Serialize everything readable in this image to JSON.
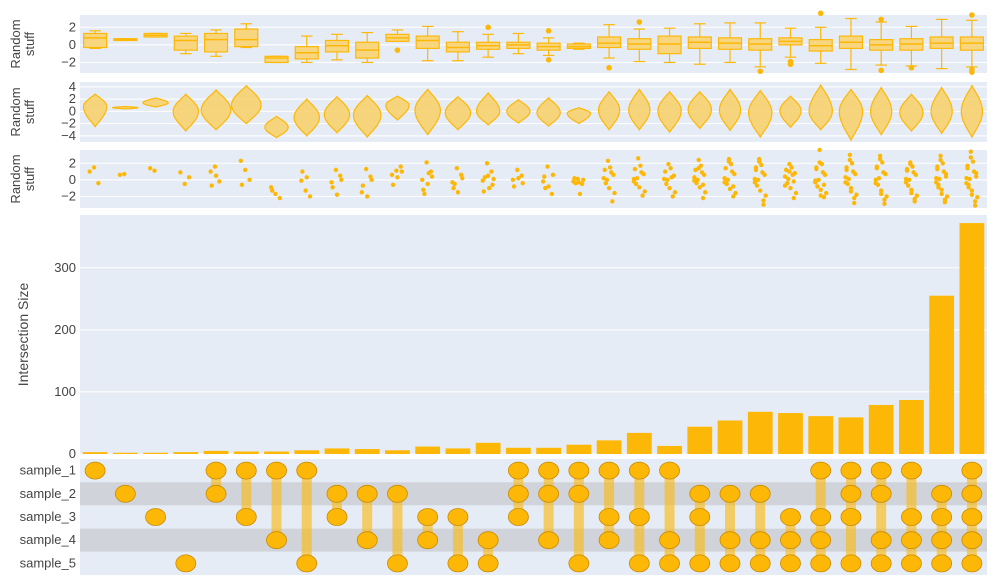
{
  "colors": {
    "bar": "#FDB807",
    "bar_stroke": "#E5A200",
    "violin_fill": "#F7D26F",
    "box_fill": "#F8D680",
    "panel_bg": "#E6ECF5",
    "band_light": "#E6ECF5",
    "band_dark": "#D0D4DA",
    "gridline": "#FFFFFF",
    "dot_stroke": "#C98A00",
    "text": "#444444"
  },
  "chart_data": [
    {
      "type": "box",
      "ylabel_lines": [
        "Random",
        "stuff"
      ],
      "ylim": [
        -3.2,
        3.4
      ],
      "yticks": [
        -2,
        0,
        2
      ],
      "ytick_labels": [
        "−2",
        "0",
        "2"
      ],
      "boxes": [
        {
          "q1": -0.3,
          "median": 0.8,
          "q3": 1.3,
          "lo": -0.4,
          "hi": 1.6,
          "out": []
        },
        {
          "q1": 0.5,
          "median": 0.6,
          "q3": 0.7,
          "lo": 0.5,
          "hi": 0.7,
          "out": []
        },
        {
          "q1": 0.9,
          "median": 1.1,
          "q3": 1.3,
          "lo": 0.9,
          "hi": 1.3,
          "out": []
        },
        {
          "q1": -0.6,
          "median": 0.5,
          "q3": 1.0,
          "lo": -1.0,
          "hi": 1.3,
          "out": []
        },
        {
          "q1": -0.8,
          "median": 0.6,
          "q3": 1.3,
          "lo": -1.3,
          "hi": 1.7,
          "out": []
        },
        {
          "q1": -0.2,
          "median": 0.6,
          "q3": 1.8,
          "lo": -0.3,
          "hi": 2.4,
          "out": []
        },
        {
          "q1": -2.0,
          "median": -1.5,
          "q3": -1.3,
          "lo": -2.0,
          "hi": -1.3,
          "out": []
        },
        {
          "q1": -1.6,
          "median": -0.9,
          "q3": -0.2,
          "lo": -2.0,
          "hi": 1.0,
          "out": []
        },
        {
          "q1": -0.8,
          "median": -0.1,
          "q3": 0.5,
          "lo": -1.7,
          "hi": 1.2,
          "out": []
        },
        {
          "q1": -1.5,
          "median": -0.6,
          "q3": 0.3,
          "lo": -2.0,
          "hi": 1.4,
          "out": []
        },
        {
          "q1": 0.4,
          "median": 0.8,
          "q3": 1.2,
          "lo": 0.4,
          "hi": 1.7,
          "out": [
            -0.6
          ]
        },
        {
          "q1": -0.4,
          "median": 0.5,
          "q3": 1.0,
          "lo": -1.8,
          "hi": 2.1,
          "out": []
        },
        {
          "q1": -0.8,
          "median": -0.3,
          "q3": 0.3,
          "lo": -1.8,
          "hi": 1.5,
          "out": []
        },
        {
          "q1": -0.5,
          "median": -0.1,
          "q3": 0.3,
          "lo": -1.4,
          "hi": 1.2,
          "out": [
            2.0
          ]
        },
        {
          "q1": -0.4,
          "median": 0.0,
          "q3": 0.3,
          "lo": -1.0,
          "hi": 1.3,
          "out": []
        },
        {
          "q1": -0.6,
          "median": -0.2,
          "q3": 0.2,
          "lo": -1.2,
          "hi": 0.8,
          "out": [
            1.6,
            -1.7
          ]
        },
        {
          "q1": -0.4,
          "median": -0.2,
          "q3": 0.1,
          "lo": -0.5,
          "hi": 0.2,
          "out": []
        },
        {
          "q1": -0.3,
          "median": 0.2,
          "q3": 0.9,
          "lo": -1.5,
          "hi": 2.3,
          "out": [
            -2.6
          ]
        },
        {
          "q1": -0.5,
          "median": 0.1,
          "q3": 0.7,
          "lo": -1.9,
          "hi": 1.8,
          "out": [
            2.6
          ]
        },
        {
          "q1": -1.0,
          "median": 0.1,
          "q3": 1.0,
          "lo": -2.0,
          "hi": 1.9,
          "out": []
        },
        {
          "q1": -0.4,
          "median": 0.3,
          "q3": 0.9,
          "lo": -2.2,
          "hi": 2.4,
          "out": []
        },
        {
          "q1": -0.5,
          "median": 0.2,
          "q3": 0.8,
          "lo": -2.0,
          "hi": 2.5,
          "out": []
        },
        {
          "q1": -0.6,
          "median": 0.1,
          "q3": 0.7,
          "lo": -2.5,
          "hi": 2.5,
          "out": [
            -3.0
          ]
        },
        {
          "q1": 0.0,
          "median": 0.4,
          "q3": 0.8,
          "lo": -1.4,
          "hi": 1.9,
          "out": [
            -1.9,
            -2.2
          ]
        },
        {
          "q1": -0.7,
          "median": -0.1,
          "q3": 0.6,
          "lo": -2.1,
          "hi": 2.0,
          "out": [
            3.6
          ]
        },
        {
          "q1": -0.4,
          "median": 0.3,
          "q3": 1.0,
          "lo": -2.8,
          "hi": 3.0,
          "out": []
        },
        {
          "q1": -0.6,
          "median": 0.0,
          "q3": 0.6,
          "lo": -2.3,
          "hi": 2.6,
          "out": [
            2.9,
            -2.9
          ]
        },
        {
          "q1": -0.6,
          "median": 0.1,
          "q3": 0.7,
          "lo": -2.4,
          "hi": 2.1,
          "out": [
            -2.6
          ]
        },
        {
          "q1": -0.4,
          "median": 0.2,
          "q3": 0.9,
          "lo": -2.7,
          "hi": 2.9,
          "out": []
        },
        {
          "q1": -0.6,
          "median": 0.2,
          "q3": 0.9,
          "lo": -2.5,
          "hi": 2.8,
          "out": [
            3.4,
            -2.8,
            -3.1
          ]
        }
      ]
    },
    {
      "type": "violin",
      "ylabel_lines": [
        "Random",
        "stuff"
      ],
      "ylim": [
        -5,
        4.8
      ],
      "yticks": [
        -4,
        -2,
        0,
        2,
        4
      ],
      "ytick_labels": [
        "−4",
        "−2",
        "0",
        "2",
        "4"
      ],
      "violins": [
        {
          "min": -2.5,
          "max": 2.8,
          "center": 0.8,
          "w": 0.55
        },
        {
          "min": 0.4,
          "max": 0.8,
          "center": 0.6,
          "w": 0.6
        },
        {
          "min": 0.7,
          "max": 2.2,
          "center": 1.4,
          "w": 0.6
        },
        {
          "min": -3.2,
          "max": 2.8,
          "center": 0.0,
          "w": 0.6
        },
        {
          "min": -3.0,
          "max": 3.5,
          "center": 0.2,
          "w": 0.7
        },
        {
          "min": -2.0,
          "max": 4.2,
          "center": 1.0,
          "w": 0.7
        },
        {
          "min": -4.3,
          "max": -0.8,
          "center": -2.6,
          "w": 0.55
        },
        {
          "min": -4.0,
          "max": 2.0,
          "center": -1.0,
          "w": 0.6
        },
        {
          "min": -3.5,
          "max": 2.4,
          "center": -0.5,
          "w": 0.6
        },
        {
          "min": -4.2,
          "max": 2.6,
          "center": -0.6,
          "w": 0.65
        },
        {
          "min": -1.4,
          "max": 2.5,
          "center": 1.0,
          "w": 0.55
        },
        {
          "min": -3.8,
          "max": 3.6,
          "center": 0.2,
          "w": 0.6
        },
        {
          "min": -3.0,
          "max": 2.4,
          "center": -0.2,
          "w": 0.6
        },
        {
          "min": -2.2,
          "max": 3.0,
          "center": 0.0,
          "w": 0.55
        },
        {
          "min": -1.9,
          "max": 1.9,
          "center": 0.0,
          "w": 0.55
        },
        {
          "min": -2.4,
          "max": 2.2,
          "center": -0.2,
          "w": 0.55
        },
        {
          "min": -2.0,
          "max": 0.6,
          "center": -0.3,
          "w": 0.55
        },
        {
          "min": -3.0,
          "max": 3.2,
          "center": 0.2,
          "w": 0.5
        },
        {
          "min": -3.0,
          "max": 3.6,
          "center": 0.2,
          "w": 0.5
        },
        {
          "min": -3.4,
          "max": 3.2,
          "center": 0.1,
          "w": 0.55
        },
        {
          "min": -2.8,
          "max": 3.2,
          "center": 0.3,
          "w": 0.55
        },
        {
          "min": -3.1,
          "max": 3.6,
          "center": 0.2,
          "w": 0.5
        },
        {
          "min": -4.2,
          "max": 3.4,
          "center": -0.2,
          "w": 0.55
        },
        {
          "min": -2.6,
          "max": 2.5,
          "center": 0.1,
          "w": 0.5
        },
        {
          "min": -3.0,
          "max": 4.3,
          "center": 0.0,
          "w": 0.55
        },
        {
          "min": -4.7,
          "max": 3.6,
          "center": 0.0,
          "w": 0.55
        },
        {
          "min": -3.8,
          "max": 3.9,
          "center": 0.0,
          "w": 0.5
        },
        {
          "min": -3.2,
          "max": 2.8,
          "center": -0.2,
          "w": 0.55
        },
        {
          "min": -3.6,
          "max": 3.9,
          "center": 0.0,
          "w": 0.5
        },
        {
          "min": -4.2,
          "max": 4.2,
          "center": 0.0,
          "w": 0.5
        }
      ]
    },
    {
      "type": "strip",
      "ylabel_lines": [
        "Random",
        "stuff"
      ],
      "ylim": [
        -3.4,
        3.6
      ],
      "yticks": [
        -2,
        0,
        2
      ],
      "ytick_labels": [
        "−2",
        "0",
        "2"
      ],
      "points": [
        [
          1.0,
          1.5,
          -0.4
        ],
        [
          0.6,
          0.7
        ],
        [
          1.4,
          1.1
        ],
        [
          0.9,
          -0.5,
          0.3
        ],
        [
          1.0,
          1.6,
          -0.2,
          -0.7,
          0.5
        ],
        [
          2.3,
          1.2,
          0.0,
          -0.6
        ],
        [
          -0.9,
          -1.7,
          -2.2,
          -1.3
        ],
        [
          -0.1,
          -1.3,
          -2.0,
          1.0,
          0.3
        ],
        [
          -0.3,
          1.2,
          0.5,
          -0.9,
          -1.8,
          0.0
        ],
        [
          -1.5,
          1.3,
          0.4,
          -0.7,
          -2.0,
          0.0
        ],
        [
          0.6,
          1.1,
          1.6,
          -0.6,
          0.3,
          1.0
        ],
        [
          0.0,
          2.1,
          1.0,
          -1.2,
          -0.5,
          0.4,
          -1.7,
          0.8
        ],
        [
          -0.3,
          1.4,
          0.6,
          -1.0,
          -1.5,
          0.2,
          -0.5
        ],
        [
          -0.1,
          2.0,
          1.0,
          -1.4,
          0.5,
          -0.6,
          0.3,
          -1.0,
          0.1
        ],
        [
          0.0,
          1.2,
          0.5,
          -0.8,
          0.2,
          -0.4
        ],
        [
          -0.2,
          1.6,
          -1.7,
          0.4,
          -0.8,
          0.6,
          -1.0
        ],
        [
          -0.2,
          0.1,
          -0.5,
          0.2,
          -0.3,
          0.0,
          -0.4,
          -1.7
        ],
        [
          0.2,
          2.3,
          -2.6,
          1.2,
          -1.0,
          0.6,
          -0.4,
          1.5,
          -1.6,
          0.0,
          0.9
        ],
        [
          0.1,
          2.6,
          -1.9,
          1.3,
          -0.9,
          0.7,
          -0.5,
          1.7,
          -1.4,
          0.2,
          0.9,
          -0.2
        ],
        [
          0.1,
          1.9,
          -2.0,
          1.0,
          -1.0,
          0.5,
          -0.5,
          1.4,
          -1.5,
          0.0,
          0.3
        ],
        [
          0.3,
          2.4,
          -2.2,
          1.2,
          -0.9,
          0.6,
          -0.4,
          1.7,
          -1.5,
          0.0,
          0.9,
          -0.1,
          1.4,
          -0.6
        ],
        [
          0.2,
          2.5,
          -2.0,
          1.4,
          -1.1,
          0.7,
          -0.5,
          1.9,
          -1.6,
          0.0,
          1.0,
          -0.3,
          2.2,
          -0.8
        ],
        [
          0.1,
          2.5,
          -3.0,
          1.2,
          -1.3,
          0.6,
          -0.7,
          1.8,
          -1.9,
          0.0,
          0.9,
          -0.3,
          2.2,
          -2.5,
          1.5
        ],
        [
          0.4,
          1.9,
          -2.2,
          1.2,
          -1.0,
          0.8,
          -0.4,
          1.5,
          -1.6,
          0.1,
          0.6,
          -0.7,
          1.0,
          -0.2
        ],
        [
          -0.1,
          3.6,
          -2.1,
          1.3,
          -1.2,
          0.6,
          -0.8,
          1.9,
          -1.6,
          0.0,
          0.9,
          -0.3,
          2.1,
          -0.6,
          1.5,
          -1.9
        ],
        [
          0.3,
          3.0,
          -2.8,
          1.2,
          -1.0,
          0.7,
          -0.5,
          2.0,
          -1.8,
          0.1,
          1.0,
          -0.3,
          2.4,
          -2.2,
          1.5,
          -1.4
        ],
        [
          0.0,
          2.9,
          -2.9,
          1.4,
          -1.3,
          0.7,
          -0.6,
          2.1,
          -2.0,
          0.2,
          0.9,
          -0.4,
          2.5,
          -2.4,
          1.6,
          -1.7
        ],
        [
          0.1,
          2.1,
          -2.6,
          1.1,
          -1.2,
          0.6,
          -0.7,
          1.6,
          -1.9,
          0.0,
          0.9,
          -0.3,
          1.9,
          -2.3,
          1.3,
          -1.6
        ],
        [
          0.2,
          2.9,
          -2.7,
          1.3,
          -1.2,
          0.7,
          -0.6,
          2.0,
          -2.0,
          0.1,
          1.0,
          -0.3,
          2.4,
          -2.4,
          1.6,
          -1.7,
          0.4,
          -0.9
        ],
        [
          0.2,
          3.4,
          -3.1,
          1.4,
          -1.3,
          0.8,
          -0.6,
          2.2,
          -2.1,
          0.1,
          1.0,
          -0.4,
          2.7,
          -2.6,
          1.7,
          -1.8,
          0.4,
          -0.9
        ]
      ]
    },
    {
      "type": "bar",
      "ylabel": "Intersection Size",
      "ylim": [
        0,
        385
      ],
      "yticks": [
        0,
        100,
        200,
        300
      ],
      "ytick_labels": [
        "0",
        "100",
        "200",
        "300"
      ],
      "values": [
        3,
        2,
        2,
        3,
        5,
        4,
        4,
        6,
        9,
        8,
        6,
        12,
        9,
        18,
        10,
        10,
        15,
        22,
        34,
        13,
        44,
        54,
        68,
        66,
        61,
        59,
        79,
        87,
        255,
        372
      ]
    },
    {
      "type": "matrix",
      "sets": [
        "sample_1",
        "sample_2",
        "sample_3",
        "sample_4",
        "sample_5"
      ],
      "columns": [
        [
          0
        ],
        [
          1
        ],
        [
          2
        ],
        [
          4
        ],
        [
          0,
          1
        ],
        [
          0,
          2
        ],
        [
          0,
          3
        ],
        [
          0,
          4
        ],
        [
          1,
          2
        ],
        [
          1,
          3
        ],
        [
          1,
          4
        ],
        [
          2,
          3
        ],
        [
          2,
          4
        ],
        [
          3,
          4
        ],
        [
          0,
          1,
          2
        ],
        [
          0,
          1,
          3
        ],
        [
          0,
          1,
          4
        ],
        [
          0,
          2,
          3
        ],
        [
          0,
          2,
          4
        ],
        [
          0,
          3,
          4
        ],
        [
          1,
          2,
          4
        ],
        [
          1,
          3,
          4
        ],
        [
          1,
          3,
          4
        ],
        [
          2,
          3,
          4
        ],
        [
          0,
          2,
          3,
          4
        ],
        [
          0,
          1,
          2,
          4
        ],
        [
          0,
          1,
          3,
          4
        ],
        [
          0,
          2,
          3,
          4
        ],
        [
          1,
          2,
          3,
          4
        ],
        [
          0,
          1,
          2,
          3,
          4
        ]
      ]
    }
  ]
}
